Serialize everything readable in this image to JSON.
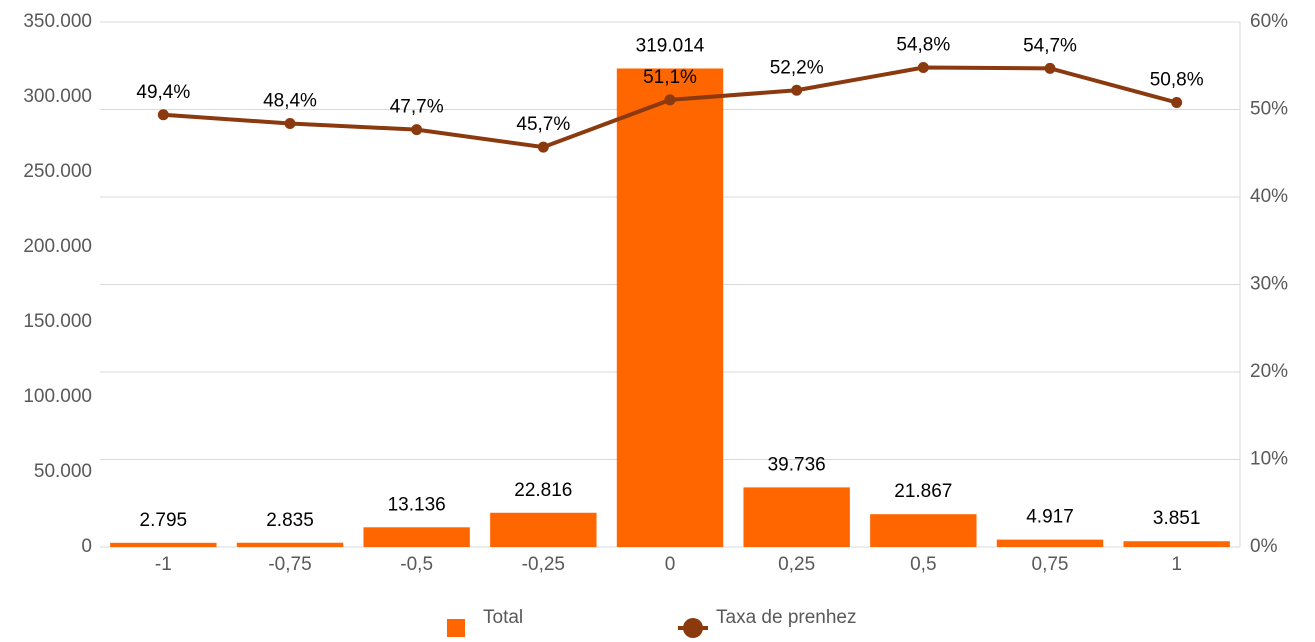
{
  "chart_data": {
    "type": "combo",
    "categories": [
      "-1",
      "-0,75",
      "-0,5",
      "-0,25",
      "0",
      "0,25",
      "0,5",
      "0,75",
      "1"
    ],
    "series": [
      {
        "name": "Total",
        "type": "bar",
        "color": "#ff6600",
        "axis": "y",
        "values": [
          2795,
          2835,
          13136,
          22816,
          319014,
          39736,
          21867,
          4917,
          3851
        ],
        "value_labels": [
          "2.795",
          "2.835",
          "13.136",
          "22.816",
          "319.014",
          "39.736",
          "21.867",
          "4.917",
          "3.851"
        ]
      },
      {
        "name": "Taxa de prenhez",
        "type": "line",
        "color": "#8b3a0f",
        "axis": "y2",
        "values": [
          49.4,
          48.4,
          47.7,
          45.7,
          51.1,
          52.2,
          54.8,
          54.7,
          50.8
        ],
        "value_labels": [
          "49,4%",
          "48,4%",
          "47,7%",
          "45,7%",
          "51,1%",
          "52,2%",
          "54,8%",
          "54,7%",
          "50,8%"
        ]
      }
    ],
    "ylim": [
      0,
      350000
    ],
    "yticks": [
      0,
      {
        "value": 50000,
        "label": "50.000"
      },
      {
        "value": 100000,
        "label": "100.000"
      },
      {
        "value": 150000,
        "label": "150.000"
      },
      {
        "value": 200000,
        "label": "200.000"
      },
      {
        "value": 250000,
        "label": "250.000"
      },
      {
        "value": 300000,
        "label": "300.000"
      },
      {
        "value": 350000,
        "label": "350.000"
      }
    ],
    "y2lim": [
      0,
      60
    ],
    "y2ticks": [
      {
        "value": 0,
        "label": "0%"
      },
      {
        "value": 10,
        "label": "10%"
      },
      {
        "value": 20,
        "label": "20%"
      },
      {
        "value": 30,
        "label": "30%"
      },
      {
        "value": 40,
        "label": "40%"
      },
      {
        "value": 50,
        "label": "50%"
      },
      {
        "value": 60,
        "label": "60%"
      }
    ],
    "grid": "y2",
    "legend": "bottom"
  }
}
